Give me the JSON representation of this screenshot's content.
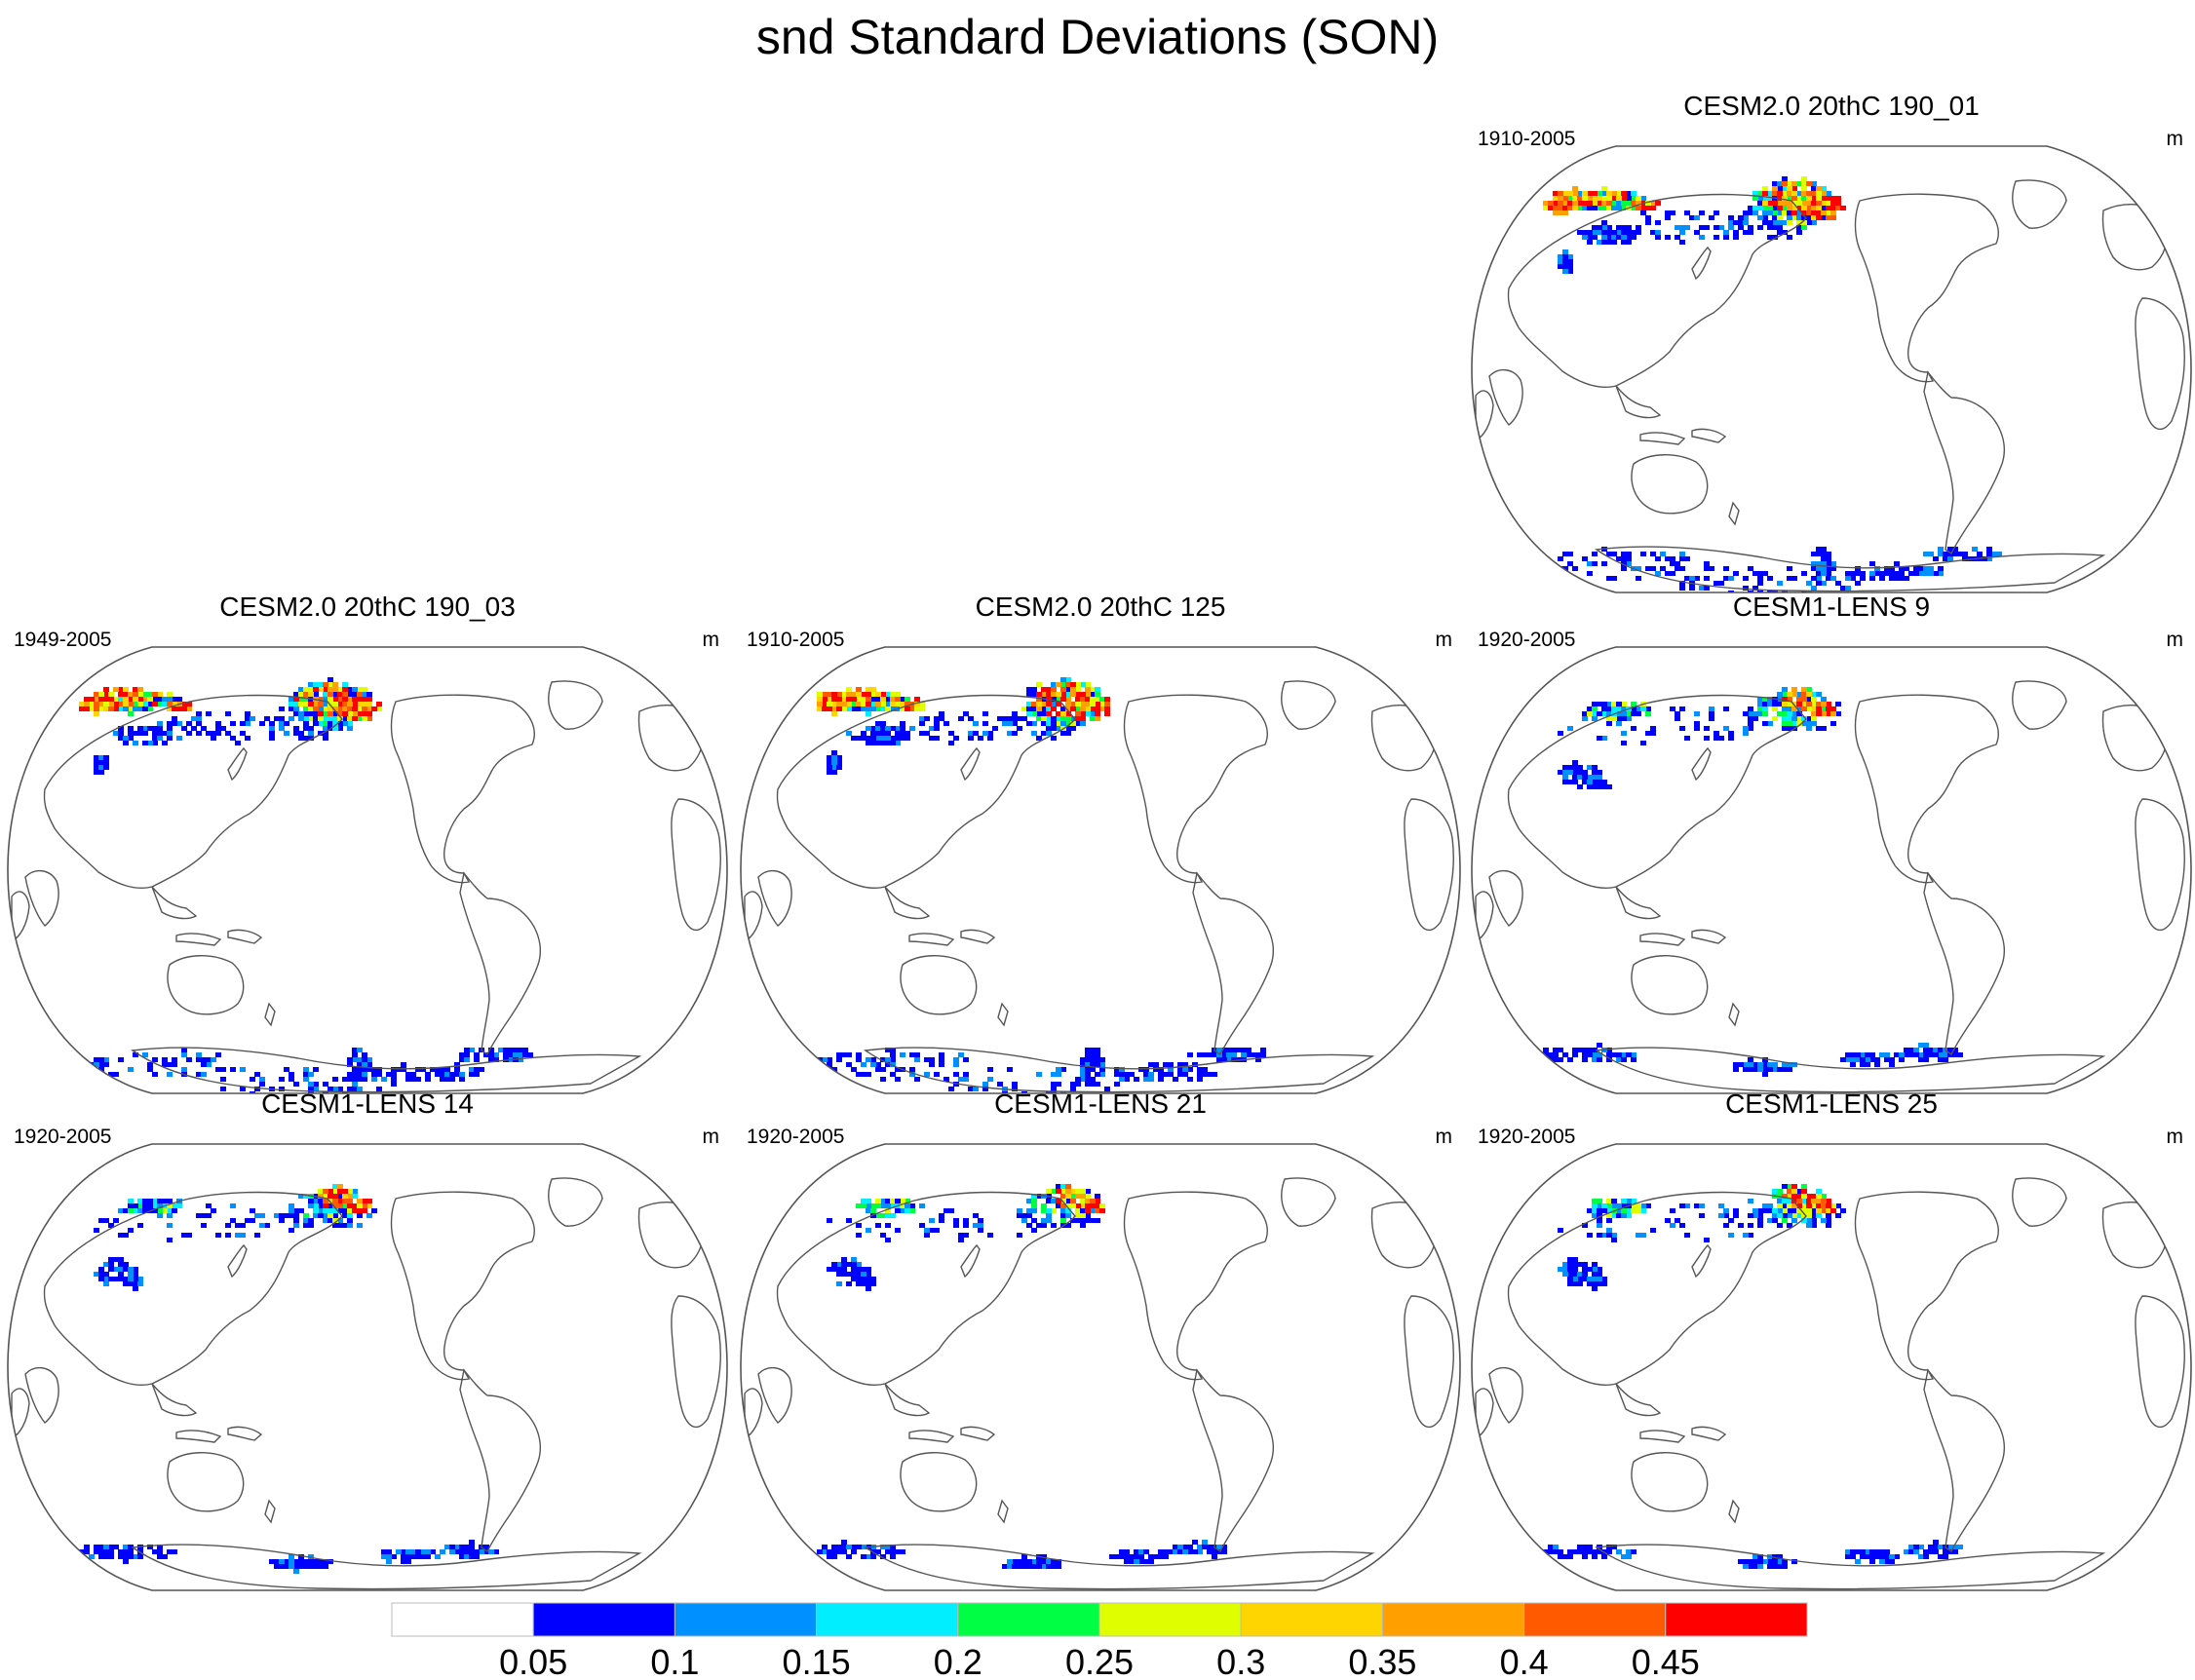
{
  "title": "snd Standard Deviations (SON)",
  "panels": [
    {
      "title": "CESM2.0 20thC 190_01",
      "years": "1910-2005",
      "units": "m",
      "snow": "heavy",
      "row": 0,
      "col": 2
    },
    {
      "title": "CESM2.0 20thC 190_03",
      "years": "1949-2005",
      "units": "m",
      "snow": "heavy",
      "row": 1,
      "col": 0
    },
    {
      "title": "CESM2.0 20thC 125",
      "years": "1910-2005",
      "units": "m",
      "snow": "heavy",
      "row": 1,
      "col": 1
    },
    {
      "title": "CESM1-LENS 9",
      "years": "1920-2005",
      "units": "m",
      "snow": "light",
      "row": 1,
      "col": 2
    },
    {
      "title": "CESM1-LENS 14",
      "years": "1920-2005",
      "units": "m",
      "snow": "light",
      "row": 2,
      "col": 0
    },
    {
      "title": "CESM1-LENS 21",
      "years": "1920-2005",
      "units": "m",
      "snow": "light",
      "row": 2,
      "col": 1
    },
    {
      "title": "CESM1-LENS 25",
      "years": "1920-2005",
      "units": "m",
      "snow": "light",
      "row": 2,
      "col": 2
    }
  ],
  "colorbar": {
    "labels": [
      "0.05",
      "0.1",
      "0.15",
      "0.2",
      "0.25",
      "0.3",
      "0.35",
      "0.4",
      "0.45"
    ],
    "colors": [
      "#ffffff",
      "#0000ff",
      "#0090ff",
      "#00eeff",
      "#00ff44",
      "#dfff00",
      "#ffd500",
      "#ffa000",
      "#ff5a00",
      "#ff0000"
    ]
  }
}
